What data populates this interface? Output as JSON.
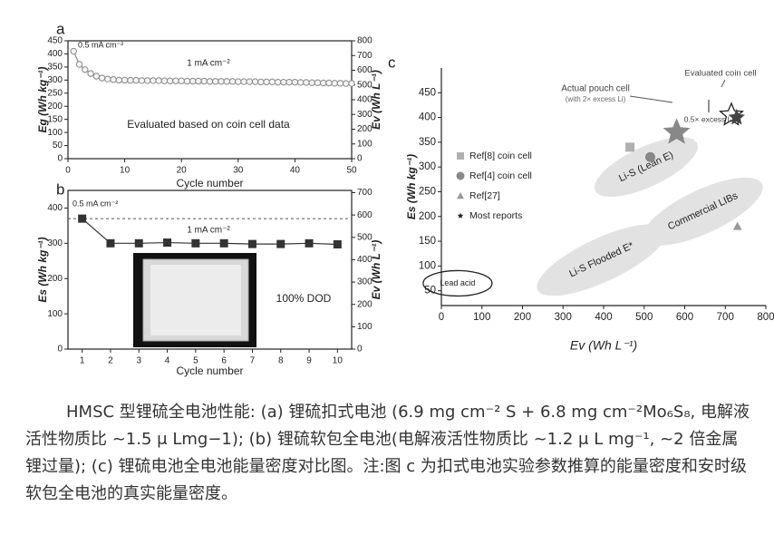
{
  "chart_data": [
    {
      "type": "line",
      "panel_label": "a",
      "ylabel": "Eg (Wh kg⁻¹)",
      "y2label": "Ev (Wh L⁻¹)",
      "xlabel": "Cycle number",
      "annotations": [
        "0.5 mA cm⁻²",
        "1 mA cm⁻²",
        "Evaluated based on coin cell data"
      ],
      "x": [
        1,
        2,
        3,
        4,
        5,
        6,
        7,
        8,
        9,
        10,
        11,
        12,
        13,
        14,
        15,
        16,
        17,
        18,
        19,
        20,
        21,
        22,
        23,
        24,
        25,
        26,
        27,
        28,
        29,
        30,
        31,
        32,
        33,
        34,
        35,
        36,
        37,
        38,
        39,
        40,
        41,
        42,
        43,
        44,
        45,
        46,
        47,
        48,
        49,
        50
      ],
      "values": [
        410,
        360,
        340,
        325,
        315,
        308,
        304,
        302,
        300,
        300,
        299,
        299,
        298,
        298,
        298,
        298,
        297,
        297,
        297,
        297,
        296,
        296,
        296,
        296,
        295,
        295,
        295,
        295,
        295,
        294,
        294,
        294,
        294,
        293,
        293,
        293,
        292,
        292,
        292,
        292,
        291,
        291,
        290,
        290,
        289,
        289,
        288,
        288,
        287,
        287
      ],
      "color": "#888888",
      "marker": "circle",
      "xlim": [
        0,
        50
      ],
      "xticks": [
        0,
        10,
        20,
        30,
        40,
        50
      ],
      "ylim": [
        0,
        450
      ],
      "yticks": [
        0,
        50,
        100,
        150,
        200,
        250,
        300,
        350,
        400,
        450
      ],
      "y2lim": [
        0,
        800
      ],
      "y2ticks": [
        0,
        100,
        200,
        300,
        400,
        500,
        600,
        700,
        800
      ]
    },
    {
      "type": "line",
      "panel_label": "b",
      "ylabel": "Es (Wh kg⁻¹)",
      "y2label": "Ev (Wh L⁻¹)",
      "xlabel": "Cycle number",
      "annotations": [
        "0.5 mA cm⁻²",
        "1 mA cm⁻²",
        "100% DOD"
      ],
      "x": [
        1,
        2,
        3,
        4,
        5,
        6,
        7,
        8,
        9,
        10
      ],
      "values": [
        370,
        300,
        300,
        302,
        300,
        300,
        298,
        298,
        300,
        297
      ],
      "color": "#333333",
      "marker": "square",
      "xlim": [
        0.5,
        10.5
      ],
      "xticks": [
        1,
        2,
        3,
        4,
        5,
        6,
        7,
        8,
        9,
        10
      ],
      "ylim": [
        0,
        450
      ],
      "yticks": [
        0,
        100,
        200,
        300,
        400
      ],
      "y2lim": [
        0,
        710
      ],
      "y2ticks": [
        0,
        100,
        200,
        300,
        400,
        500,
        600,
        700
      ]
    },
    {
      "type": "scatter",
      "panel_label": "c",
      "ylabel": "Es (Wh kg⁻¹)",
      "xlabel": "Ev (Wh L⁻¹)",
      "series": [
        {
          "name": "Ref[8] coin cell",
          "color": "#b0b0b0",
          "marker": "square",
          "x": [
            465
          ],
          "values": [
            340
          ]
        },
        {
          "name": "Ref[4] coin cell",
          "color": "#888888",
          "marker": "circle",
          "x": [
            515
          ],
          "values": [
            320
          ]
        },
        {
          "name": "Ref[27]",
          "color": "#999999",
          "marker": "triangle",
          "x": [
            730
          ],
          "values": [
            180
          ]
        },
        {
          "name": "Most reports",
          "color": "#222222",
          "marker": "star",
          "x": [],
          "values": []
        }
      ],
      "highlights": [
        {
          "label": "Actual pouch cell",
          "sublabel": "(with 2× excess Li)",
          "x": 580,
          "y": 370
        },
        {
          "label": "Evaluated coin cell",
          "x": 715,
          "y": 405
        },
        {
          "label": "0.5× excess Li",
          "x": 728,
          "y": 400
        }
      ],
      "regions": [
        "Li-S (Lean E)",
        "Commercial LIBs",
        "Li-S Flooded E*",
        "Lead acid"
      ],
      "xlim": [
        0,
        800
      ],
      "xticks": [
        0,
        100,
        200,
        300,
        400,
        500,
        600,
        700,
        800
      ],
      "ylim": [
        20,
        500
      ],
      "yticks": [
        50,
        100,
        150,
        200,
        250,
        300,
        350,
        400,
        450
      ]
    }
  ],
  "caption": "HMSC 型锂硫全电池性能: (a) 锂硫扣式电池 (6.9 mg cm⁻² S + 6.8 mg cm⁻²Mo₆S₈, 电解液活性物质比 ~1.5 μ Lmg−1); (b) 锂硫软包全电池(电解液活性物质比 ~1.2 μ L mg⁻¹, ~2 倍金属锂过量); (c) 锂硫电池全电池能量密度对比图。注:图 c 为扣式电池实验参数推算的能量密度和安时级软包全电池的真实能量密度。"
}
